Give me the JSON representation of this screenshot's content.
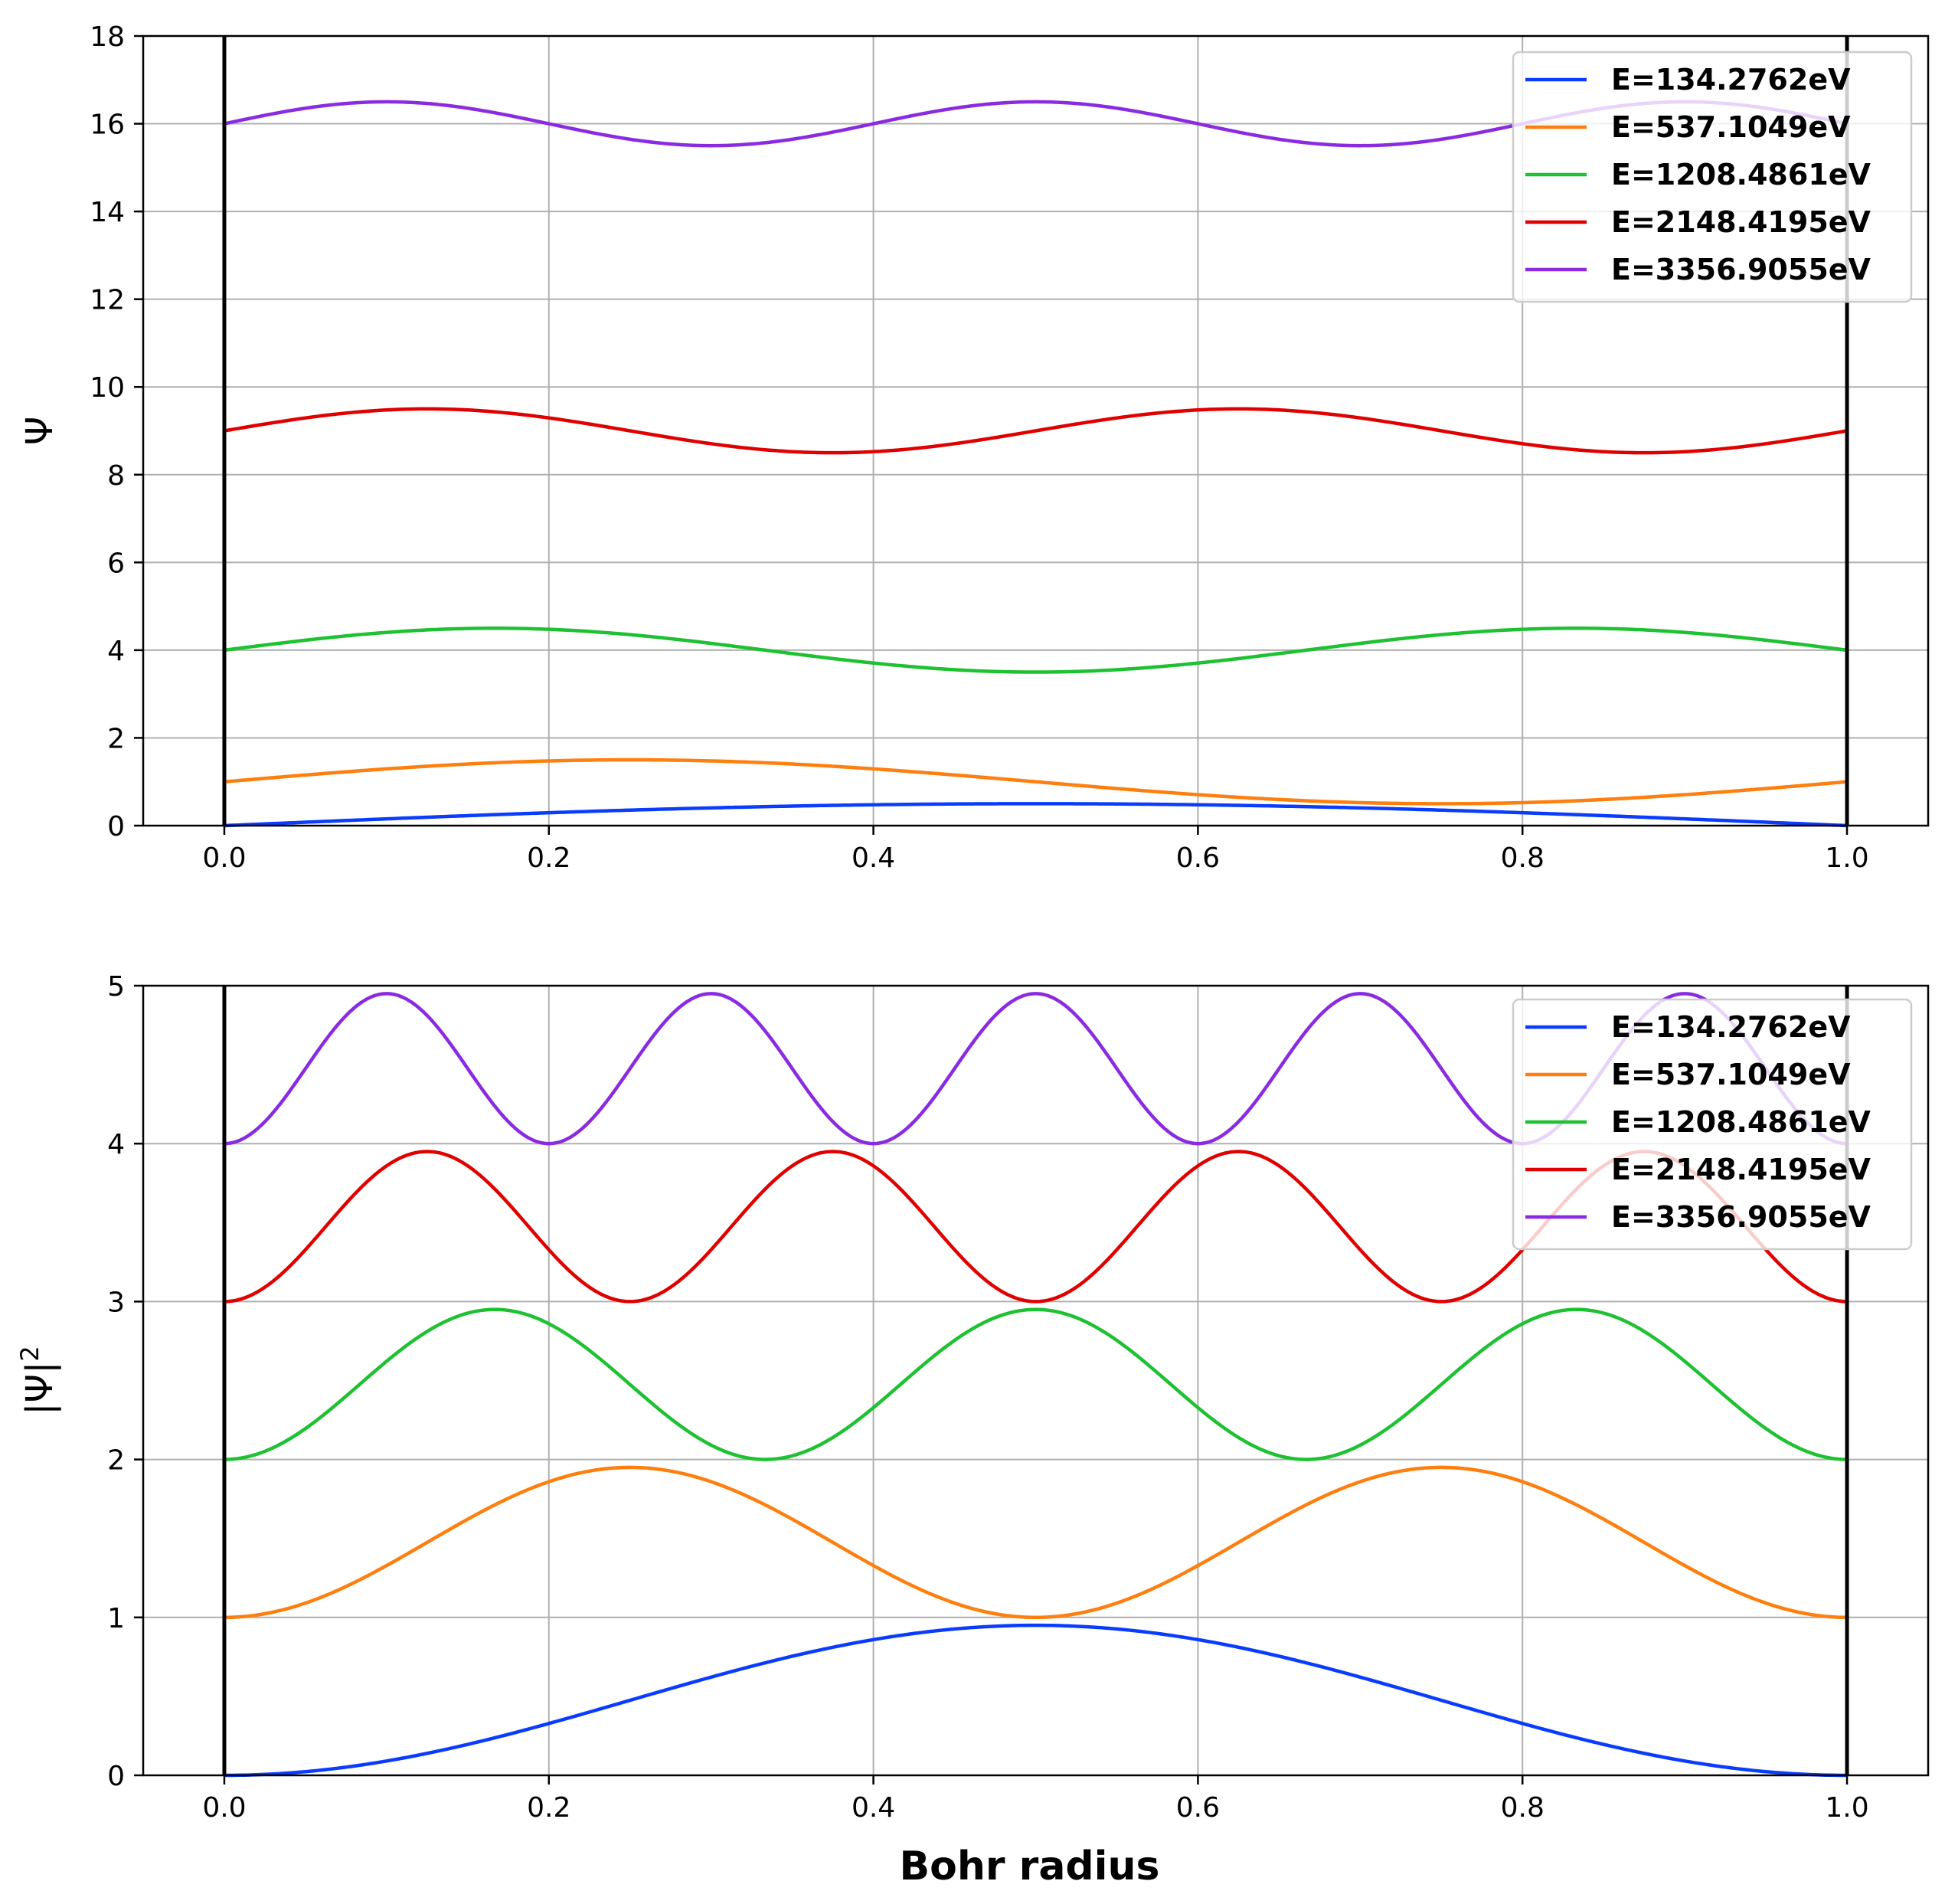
{
  "chart_data": [
    {
      "type": "line",
      "title": "",
      "xlabel": "",
      "ylabel": "Ψ",
      "xlim": [
        -0.05,
        1.05
      ],
      "ylim": [
        0,
        18
      ],
      "xticks": [
        "0.0",
        "0.2",
        "0.4",
        "0.6",
        "0.8",
        "1.0"
      ],
      "yticks": [
        "0",
        "2",
        "4",
        "6",
        "8",
        "10",
        "12",
        "14",
        "16",
        "18"
      ],
      "grid": true,
      "legend_position": "top-right",
      "wall_lines_x": [
        0,
        1
      ],
      "series": [
        {
          "name": "E=134.2762eV",
          "color": "#0a3cff",
          "n": 1,
          "offset": 0,
          "amplitude": 0.5,
          "function": "0.5*sin(1*pi*x)"
        },
        {
          "name": "E=537.1049eV",
          "color": "#ff7f0e",
          "n": 2,
          "offset": 1,
          "amplitude": 0.5,
          "function": "1+0.5*sin(2*pi*x)"
        },
        {
          "name": "E=1208.4861eV",
          "color": "#1ec131",
          "n": 3,
          "offset": 4,
          "amplitude": 0.5,
          "function": "4+0.5*sin(3*pi*x)"
        },
        {
          "name": "E=2148.4195eV",
          "color": "#e00000",
          "n": 4,
          "offset": 9,
          "amplitude": 0.5,
          "function": "9+0.5*sin(4*pi*x)"
        },
        {
          "name": "E=3356.9055eV",
          "color": "#8a2be2",
          "n": 5,
          "offset": 16,
          "amplitude": 0.5,
          "function": "16+0.5*sin(5*pi*x)"
        }
      ]
    },
    {
      "type": "line",
      "title": "",
      "xlabel": "Bohr radius",
      "ylabel": "|Ψ|",
      "ylabel_superscript": "2",
      "xlim": [
        -0.05,
        1.05
      ],
      "ylim": [
        0,
        5
      ],
      "xticks": [
        "0.0",
        "0.2",
        "0.4",
        "0.6",
        "0.8",
        "1.0"
      ],
      "yticks": [
        "0",
        "1",
        "2",
        "3",
        "4",
        "5"
      ],
      "grid": true,
      "legend_position": "top-right",
      "wall_lines_x": [
        0,
        1
      ],
      "series": [
        {
          "name": "E=134.2762eV",
          "color": "#0a3cff",
          "n": 1,
          "offset": 0,
          "amplitude": 0.95,
          "function": "0.95*sin^2(1*pi*x)"
        },
        {
          "name": "E=537.1049eV",
          "color": "#ff7f0e",
          "n": 2,
          "offset": 1,
          "amplitude": 0.95,
          "function": "1+0.95*sin^2(2*pi*x)"
        },
        {
          "name": "E=1208.4861eV",
          "color": "#1ec131",
          "n": 3,
          "offset": 2,
          "amplitude": 0.95,
          "function": "2+0.95*sin^2(3*pi*x)"
        },
        {
          "name": "E=2148.4195eV",
          "color": "#e00000",
          "n": 4,
          "offset": 3,
          "amplitude": 0.95,
          "function": "3+0.95*sin^2(4*pi*x)"
        },
        {
          "name": "E=3356.9055eV",
          "color": "#8a2be2",
          "n": 5,
          "offset": 4,
          "amplitude": 0.95,
          "function": "4+0.95*sin^2(5*pi*x)"
        }
      ]
    }
  ]
}
